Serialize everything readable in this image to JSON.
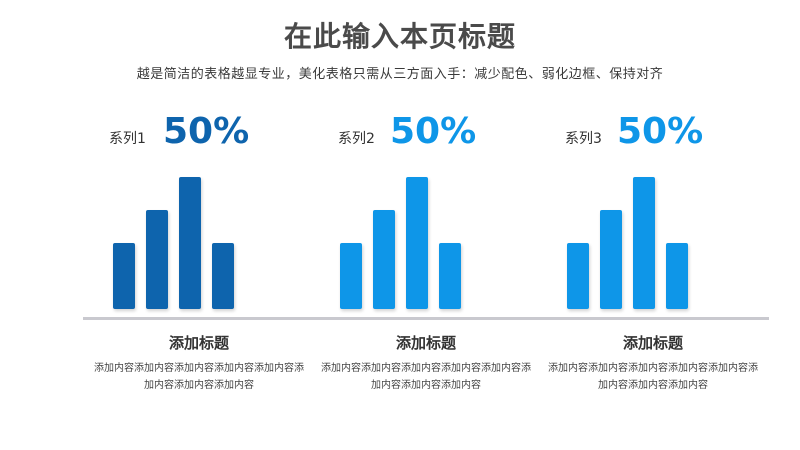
{
  "header": {
    "title": "在此输入本页标题",
    "subtitle": "越是简洁的表格越显专业，美化表格只需从三方面入手：减少配色、弱化边框、保持对齐"
  },
  "panels": [
    {
      "series": "系列1",
      "percent": "50%",
      "color": "#0e64ad",
      "heading": "添加标题",
      "text": "添加内容添加内容添加内容添加内容添加内容添加内容添加内容添加内容"
    },
    {
      "series": "系列2",
      "percent": "50%",
      "color": "#0e96e8",
      "heading": "添加标题",
      "text": "添加内容添加内容添加内容添加内容添加内容添加内容添加内容添加内容"
    },
    {
      "series": "系列3",
      "percent": "50%",
      "color": "#0e96e8",
      "heading": "添加标题",
      "text": "添加内容添加内容添加内容添加内容添加内容添加内容添加内容添加内容"
    }
  ],
  "chart_data": [
    {
      "type": "bar",
      "series": [
        {
          "name": "系列1",
          "values": [
            2,
            3,
            4,
            2
          ]
        }
      ]
    },
    {
      "type": "bar",
      "series": [
        {
          "name": "系列2",
          "values": [
            2,
            3,
            4,
            2
          ]
        }
      ]
    },
    {
      "type": "bar",
      "series": [
        {
          "name": "系列3",
          "values": [
            2,
            3,
            4,
            2
          ]
        }
      ]
    }
  ]
}
